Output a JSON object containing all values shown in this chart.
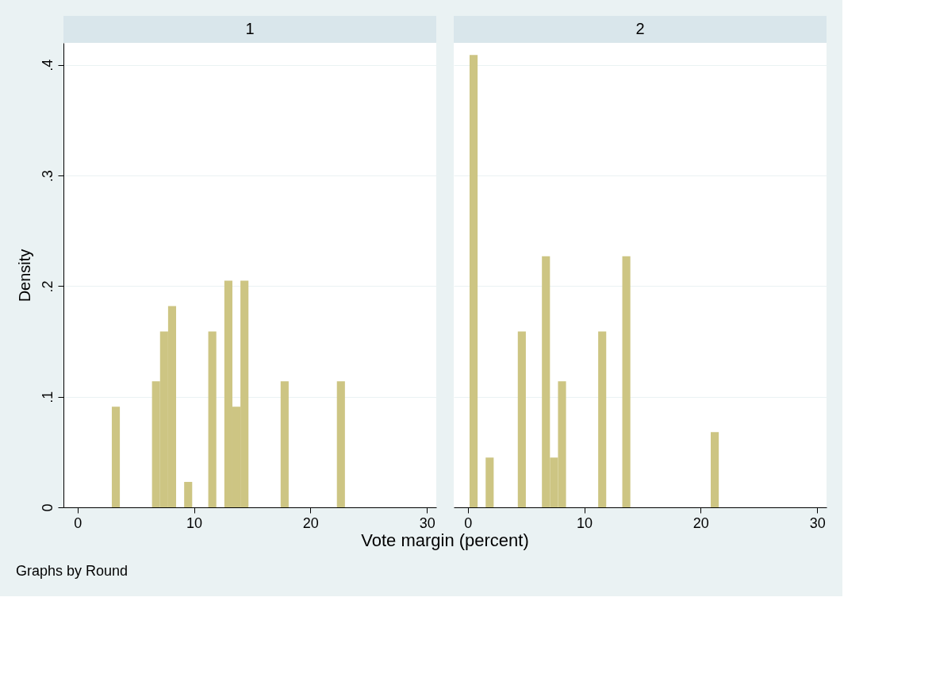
{
  "chart_data": [
    {
      "type": "histogram",
      "title": "1",
      "ylabel": "Density",
      "xlabel": "Vote margin (percent)",
      "annotations": [
        "Graphs by Round"
      ],
      "color": "#cdc583",
      "bins": [
        2.95,
        3.64,
        4.33,
        5.02,
        5.71,
        6.4,
        7.09,
        7.78,
        8.47,
        9.16,
        9.85,
        10.54,
        11.23,
        11.92,
        12.61,
        13.3,
        13.99,
        14.68,
        15.37,
        16.06,
        16.75,
        17.44,
        18.13,
        18.82,
        19.51,
        20.2,
        20.89,
        21.58,
        22.27,
        22.96
      ],
      "values": [
        0.091,
        0,
        0,
        0,
        0,
        0.114,
        0.159,
        0.182,
        0,
        0.023,
        0,
        0,
        0.159,
        0,
        0.205,
        0.091,
        0.205,
        0,
        0,
        0,
        0,
        0.114,
        0,
        0,
        0,
        0,
        0,
        0,
        0.114
      ],
      "xlim": [
        -1.2,
        30.8
      ],
      "xticks": [
        0,
        10,
        20,
        30
      ],
      "ylim": [
        0,
        0.42
      ],
      "yticks": [
        0,
        {
          "value": 0.1,
          "label": ".1"
        },
        {
          "value": 0.2,
          "label": ".2"
        },
        {
          "value": 0.3,
          "label": ".3"
        },
        {
          "value": 0.4,
          "label": ".4"
        }
      ],
      "grid": "y"
    },
    {
      "type": "histogram",
      "title": "2",
      "color": "#cdc583",
      "bins": [
        0.16,
        0.85,
        1.54,
        2.23,
        2.92,
        3.61,
        4.3,
        4.99,
        5.68,
        6.37,
        7.06,
        7.75,
        8.44,
        9.13,
        9.82,
        10.51,
        11.2,
        11.89,
        12.58,
        13.27,
        13.96,
        14.65,
        15.34,
        16.03,
        16.72,
        17.41,
        18.1,
        18.79,
        19.48,
        20.17,
        20.86,
        21.55
      ],
      "values": [
        0.409,
        0,
        0.045,
        0,
        0,
        0,
        0.159,
        0,
        0,
        0.227,
        0.045,
        0.114,
        0,
        0,
        0,
        0,
        0.159,
        0,
        0,
        0.227,
        0,
        0,
        0,
        0,
        0,
        0,
        0,
        0,
        0,
        0,
        0.068
      ],
      "xlim": [
        -1.2,
        30.8
      ],
      "xticks": [
        0,
        10,
        20,
        30
      ],
      "ylim": [
        0,
        0.42
      ],
      "yticks": [
        0,
        0.1,
        0.2,
        0.3,
        0.4
      ],
      "grid": "y",
      "tick_labels": "x"
    }
  ]
}
